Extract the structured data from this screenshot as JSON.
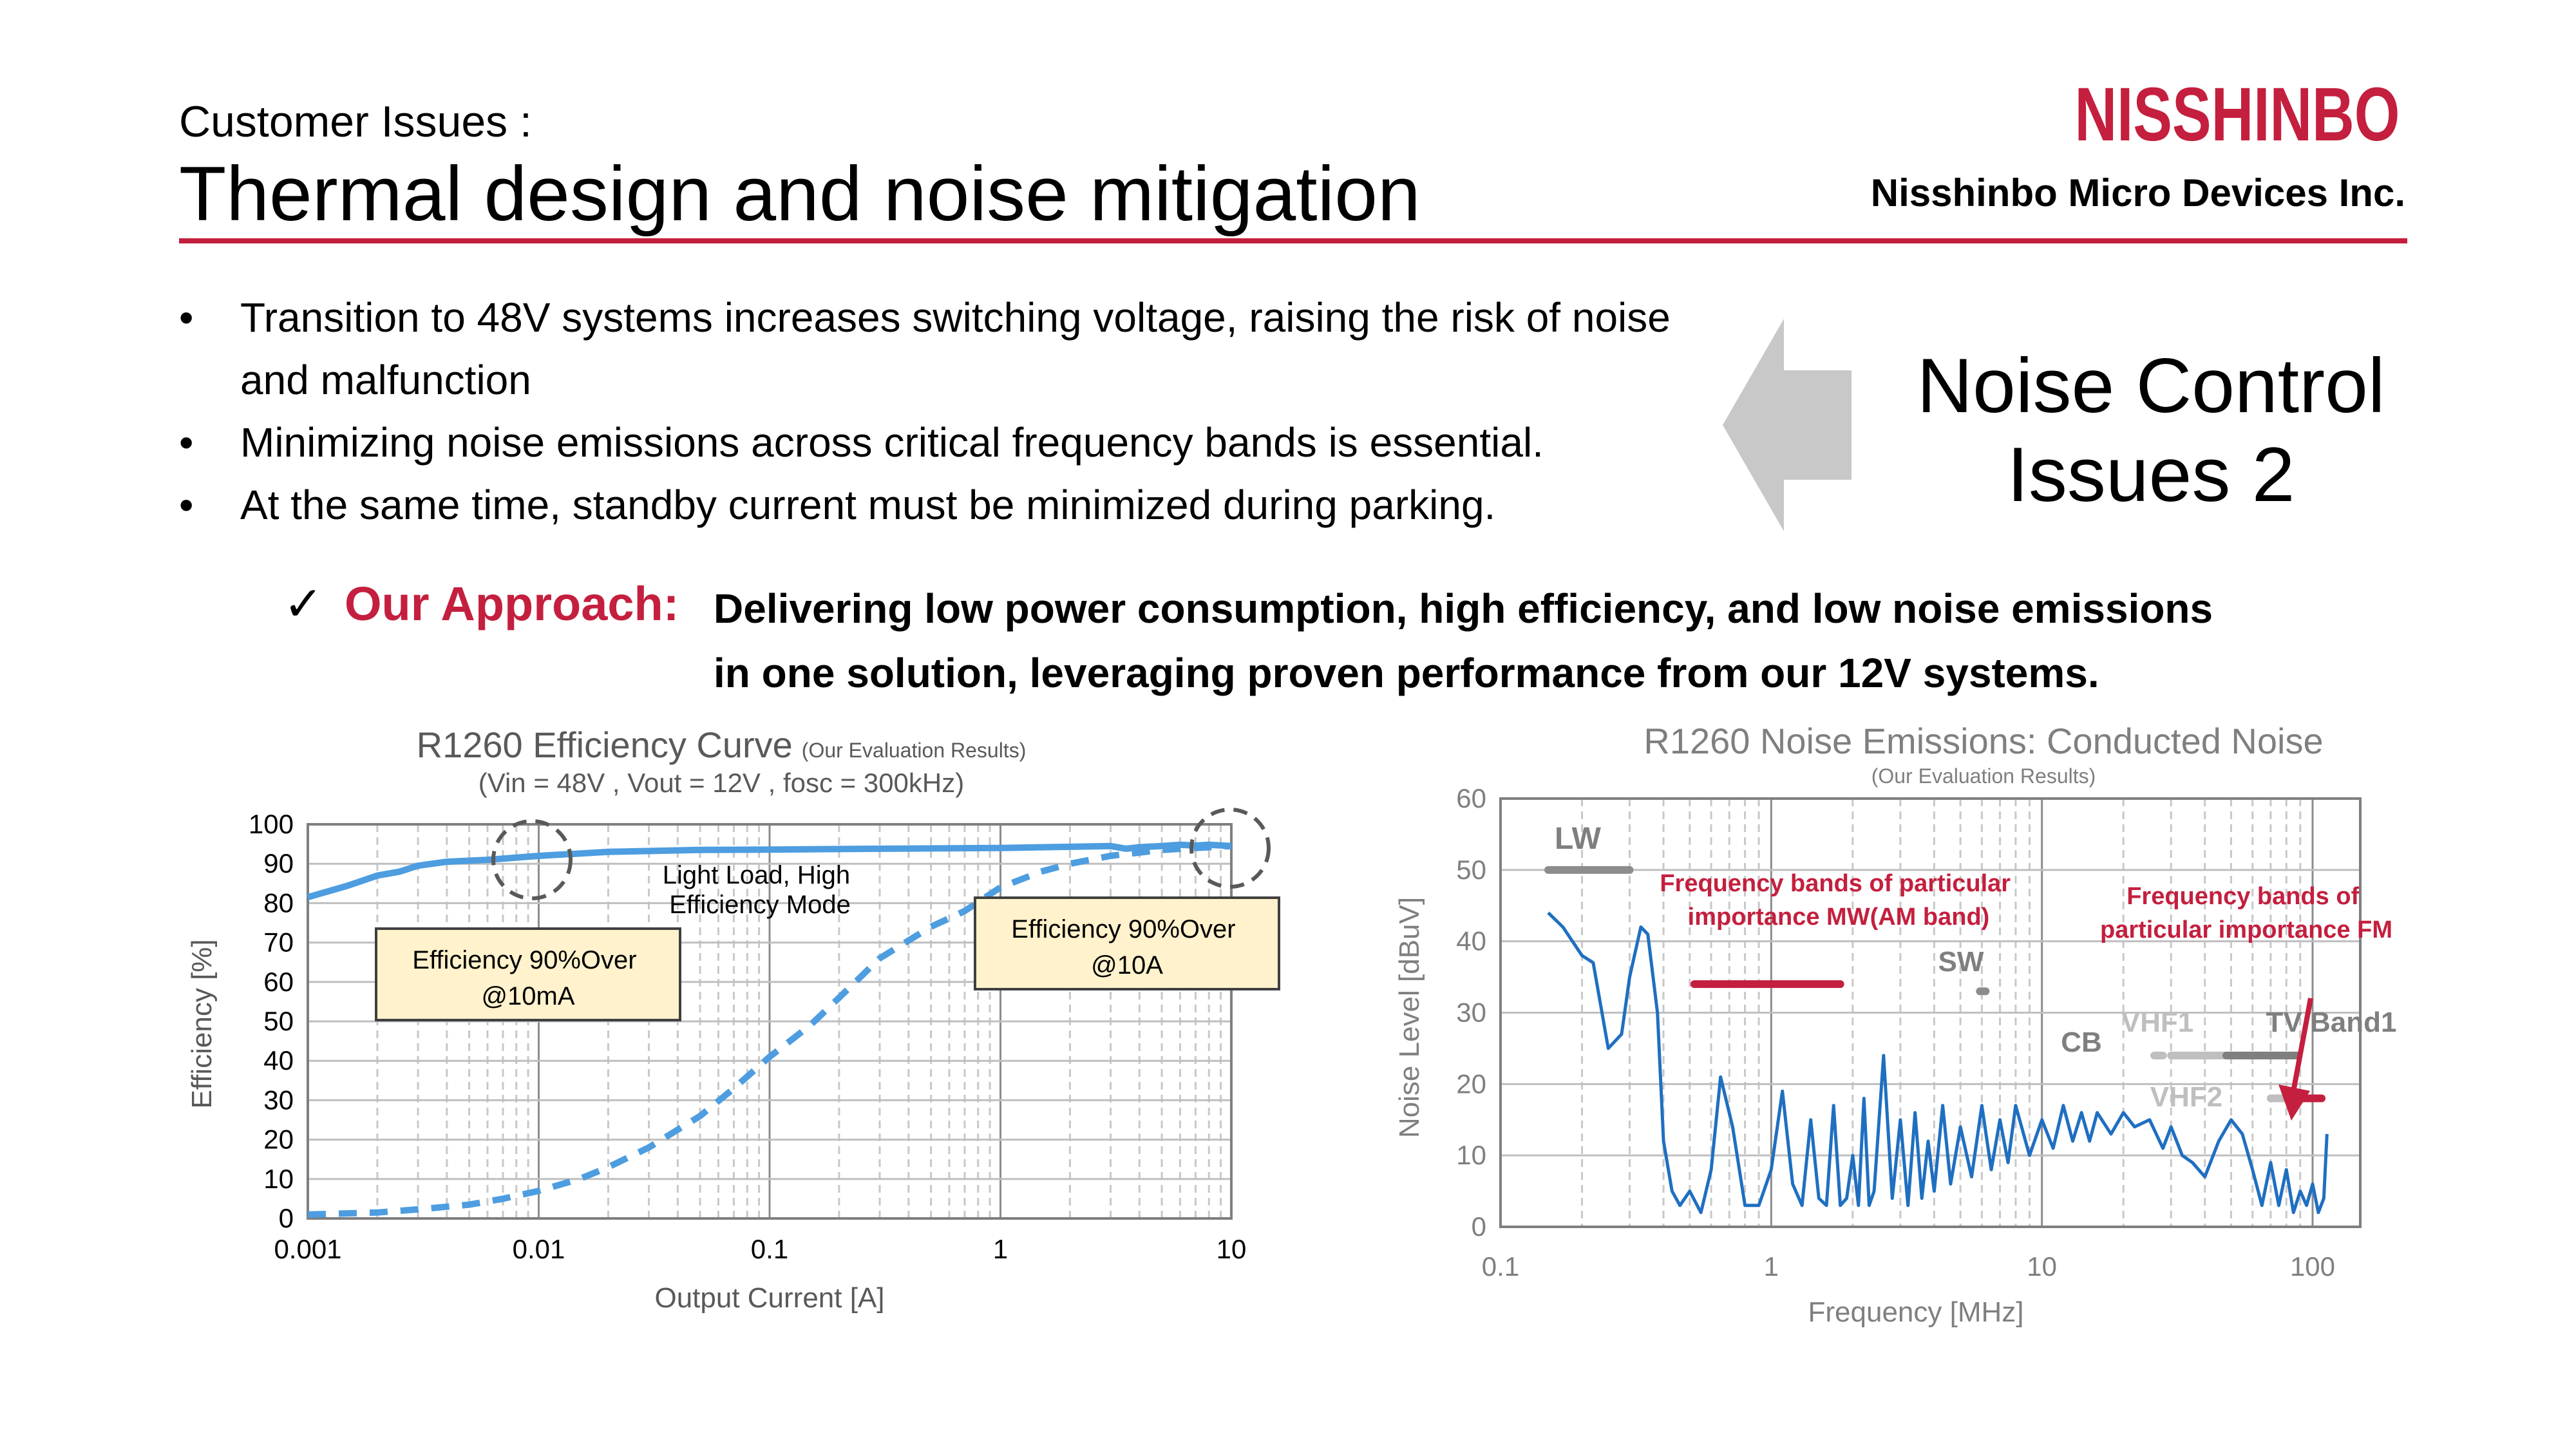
{
  "header": {
    "subtitle": "Customer Issues :",
    "title": "Thermal design and noise mitigation",
    "company": "Nisshinbo Micro Devices Inc.",
    "logo_text": "NISSHINBO",
    "rule_color": "#c41f3e"
  },
  "bullets": [
    "Transition to 48V systems increases switching voltage, raising the risk of noise and malfunction",
    "Minimizing noise emissions across critical frequency bands is essential.",
    "At the same time, standby current must be minimized during parking."
  ],
  "issue_box": {
    "line1": "Noise Control",
    "line2": "Issues 2",
    "arrow_icon": "left-arrow-icon"
  },
  "approach": {
    "check_icon": "✓",
    "label": "Our Approach:",
    "line1": "Delivering low power consumption, high efficiency, and low noise emissions",
    "line2": "in one solution, leveraging proven performance from our 12V systems."
  },
  "chart_data": [
    {
      "type": "line",
      "title": "R1260 Efficiency Curve",
      "title_note": "(Our Evaluation Results)",
      "subtitle": "(Vin = 48V , Vout = 12V , fosc = 300kHz)",
      "xlabel": "Output Current [A]",
      "ylabel": "Efficiency [%]",
      "xscale": "log",
      "xlim": [
        0.001,
        10
      ],
      "ylim": [
        0,
        100
      ],
      "xticks": [
        "0.001",
        "0.01",
        "0.1",
        "1",
        "10"
      ],
      "yticks": [
        "0",
        "10",
        "20",
        "30",
        "40",
        "50",
        "60",
        "70",
        "80",
        "90",
        "100"
      ],
      "grid": true,
      "series": [
        {
          "style": "solid",
          "color": "#4d9de0",
          "x": [
            0.001,
            0.0015,
            0.002,
            0.0025,
            0.003,
            0.004,
            0.006,
            0.01,
            0.02,
            0.05,
            0.1,
            0.3,
            1,
            2,
            3,
            3.5,
            4,
            5,
            6,
            7,
            8,
            10
          ],
          "y": [
            81.5,
            84.5,
            87,
            88,
            89.5,
            90.5,
            91,
            92,
            93,
            93.5,
            93.6,
            93.8,
            94,
            94.3,
            94.5,
            93.8,
            94.2,
            94.5,
            94.8,
            94.6,
            94.8,
            94.5
          ]
        },
        {
          "style": "dashed",
          "color": "#4d9de0",
          "x": [
            0.001,
            0.002,
            0.003,
            0.005,
            0.007,
            0.01,
            0.015,
            0.02,
            0.03,
            0.05,
            0.07,
            0.1,
            0.15,
            0.2,
            0.3,
            0.5,
            0.7,
            1,
            1.5,
            2,
            3,
            5,
            7,
            10
          ],
          "y": [
            1,
            1.5,
            2.3,
            3.5,
            5,
            7,
            10,
            13,
            18,
            26,
            33,
            41,
            49,
            56,
            66,
            74,
            78,
            84,
            88,
            90,
            92,
            93.5,
            94,
            94.5
          ]
        }
      ],
      "annotations": [
        {
          "text_lines": [
            "Light Load, High",
            "Efficiency Mode"
          ]
        },
        {
          "text_lines": [
            "Efficiency 90%Over",
            "@10mA"
          ]
        },
        {
          "text_lines": [
            "Efficiency 90%Over",
            "@10A"
          ]
        }
      ],
      "highlights": [
        {
          "x": 0.01,
          "y": 93
        },
        {
          "x": 9.5,
          "y": 94.5
        }
      ]
    },
    {
      "type": "line",
      "title": "R1260 Noise Emissions: Conducted Noise",
      "title_note": "(Our Evaluation Results)",
      "xlabel": "Frequency [MHz]",
      "ylabel": "Noise Level [dBuV]",
      "xscale": "log",
      "xlim": [
        0.1,
        150
      ],
      "ylim": [
        0,
        60
      ],
      "xticks": [
        "0.1",
        "1",
        "10",
        "100"
      ],
      "yticks": [
        "0",
        "10",
        "20",
        "30",
        "40",
        "50",
        "60"
      ],
      "grid": true,
      "series": [
        {
          "color": "#1f6fc1",
          "x": [
            0.15,
            0.17,
            0.2,
            0.22,
            0.25,
            0.28,
            0.3,
            0.33,
            0.35,
            0.38,
            0.4,
            0.43,
            0.46,
            0.5,
            0.55,
            0.6,
            0.65,
            0.72,
            0.8,
            0.9,
            1.0,
            1.1,
            1.2,
            1.3,
            1.4,
            1.5,
            1.6,
            1.7,
            1.8,
            1.9,
            2.0,
            2.1,
            2.2,
            2.3,
            2.4,
            2.6,
            2.8,
            3.0,
            3.2,
            3.4,
            3.6,
            3.8,
            4.0,
            4.3,
            4.6,
            5.0,
            5.5,
            6.0,
            6.5,
            7.0,
            7.5,
            8.0,
            9.0,
            10,
            11,
            12,
            13,
            14,
            15,
            16,
            18,
            20,
            22,
            25,
            28,
            30,
            33,
            36,
            40,
            45,
            50,
            55,
            60,
            65,
            70,
            75,
            80,
            85,
            90,
            95,
            100,
            105,
            110,
            113
          ],
          "y": [
            44,
            42,
            38,
            37,
            25,
            27,
            35,
            42,
            41,
            30,
            12,
            5,
            3,
            5,
            2,
            8,
            21,
            14,
            3,
            3,
            8,
            19,
            6,
            3,
            15,
            4,
            3,
            17,
            3,
            4,
            10,
            3,
            18,
            3,
            5,
            24,
            4,
            15,
            3,
            16,
            4,
            12,
            5,
            17,
            6,
            14,
            7,
            17,
            8,
            15,
            9,
            17,
            10,
            15,
            11,
            17,
            12,
            16,
            12,
            16,
            13,
            16,
            14,
            15,
            11,
            14,
            10,
            9,
            7,
            12,
            15,
            13,
            8,
            3,
            9,
            3,
            8,
            2,
            5,
            3,
            6,
            2,
            4,
            13
          ]
        }
      ],
      "bands": [
        {
          "label": "LW",
          "x_start": 0.15,
          "x_end": 0.3,
          "y": 50,
          "color": "#8c8c8c"
        },
        {
          "label": "Frequency bands of particular importance MW(AM band)",
          "x_start": 0.52,
          "x_end": 1.8,
          "y": 34,
          "color": "#c41f3e"
        },
        {
          "label": "SW",
          "x_start": 5.9,
          "x_end": 6.2,
          "y": 33,
          "color": "#8c8c8c"
        },
        {
          "label": "CB",
          "x_start": 26,
          "x_end": 28,
          "y": 24,
          "color": "#bfbfbf"
        },
        {
          "label": "VHF1",
          "x_start": 30,
          "x_end": 50,
          "y": 24,
          "color": "#bfbfbf"
        },
        {
          "label": "TV Band1",
          "x_start": 48,
          "x_end": 88,
          "y": 24,
          "color": "#7f7f7f"
        },
        {
          "label": "VHF2",
          "x_start": 70,
          "x_end": 87,
          "y": 18,
          "color": "#bfbfbf"
        },
        {
          "label": "Frequency bands of particular importance FM",
          "x_start": 88,
          "x_end": 108,
          "y": 18,
          "color": "#c41f3e"
        }
      ]
    }
  ]
}
